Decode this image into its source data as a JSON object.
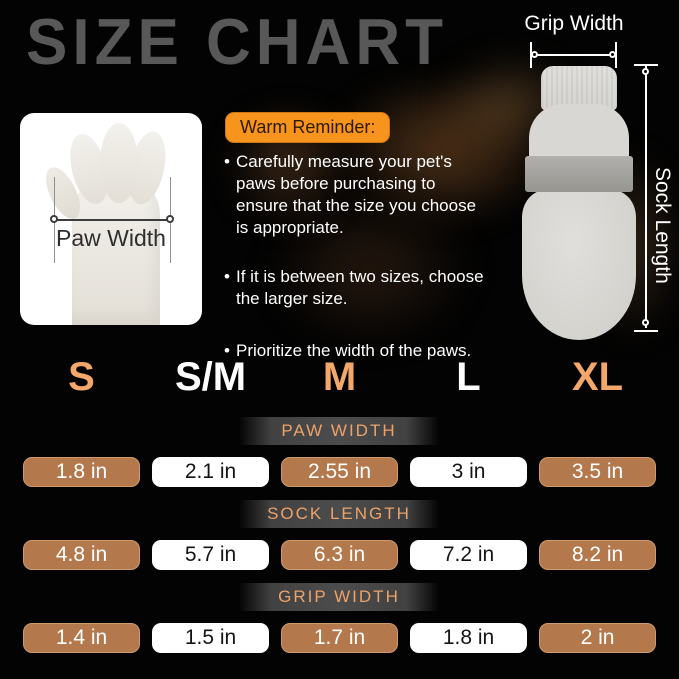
{
  "page": {
    "title": "SIZE CHART"
  },
  "paw_diagram": {
    "label": "Paw Width"
  },
  "sock_diagram": {
    "grip_label": "Grip Width",
    "length_label": "Sock Length"
  },
  "warm_reminder": {
    "heading": "Warm Reminder:",
    "bullets": [
      "Carefully measure your pet's paws before purchasing to ensure that the size you choose is appropriate.",
      "If it is between two sizes, choose the larger size.",
      "Prioritize the width of the paws."
    ]
  },
  "sizes": [
    "S",
    "S/M",
    "M",
    "L",
    "XL"
  ],
  "sections": [
    {
      "header": "PAW WIDTH",
      "values": [
        "1.8 in",
        "2.1 in",
        "2.55 in",
        "3 in",
        "3.5 in"
      ]
    },
    {
      "header": "SOCK LENGTH",
      "values": [
        "4.8 in",
        "5.7 in",
        "6.3 in",
        "7.2 in",
        "8.2 in"
      ]
    },
    {
      "header": "GRIP WIDTH",
      "values": [
        "1.4 in",
        "1.5 in",
        "1.7 in",
        "1.8 in",
        "2 in"
      ]
    }
  ],
  "colors": {
    "accent_orange": "#f3a76b",
    "header_text_orange": "#eda26a",
    "badge_orange": "#f7941e",
    "cell_brown": "#b3794d",
    "cell_white": "#ffffff",
    "title_gray": "#585858",
    "background": "#000000"
  },
  "chart_data": {
    "type": "table",
    "title": "SIZE CHART",
    "columns": [
      "S",
      "S/M",
      "M",
      "L",
      "XL"
    ],
    "rows": [
      {
        "label": "PAW WIDTH",
        "unit": "in",
        "values": [
          1.8,
          2.1,
          2.55,
          3,
          3.5
        ]
      },
      {
        "label": "SOCK LENGTH",
        "unit": "in",
        "values": [
          4.8,
          5.7,
          6.3,
          7.2,
          8.2
        ]
      },
      {
        "label": "GRIP WIDTH",
        "unit": "in",
        "values": [
          1.4,
          1.5,
          1.7,
          1.8,
          2
        ]
      }
    ],
    "notes": "Product size chart for dog socks; measurement guides show Paw Width, Grip Width and Sock Length."
  }
}
